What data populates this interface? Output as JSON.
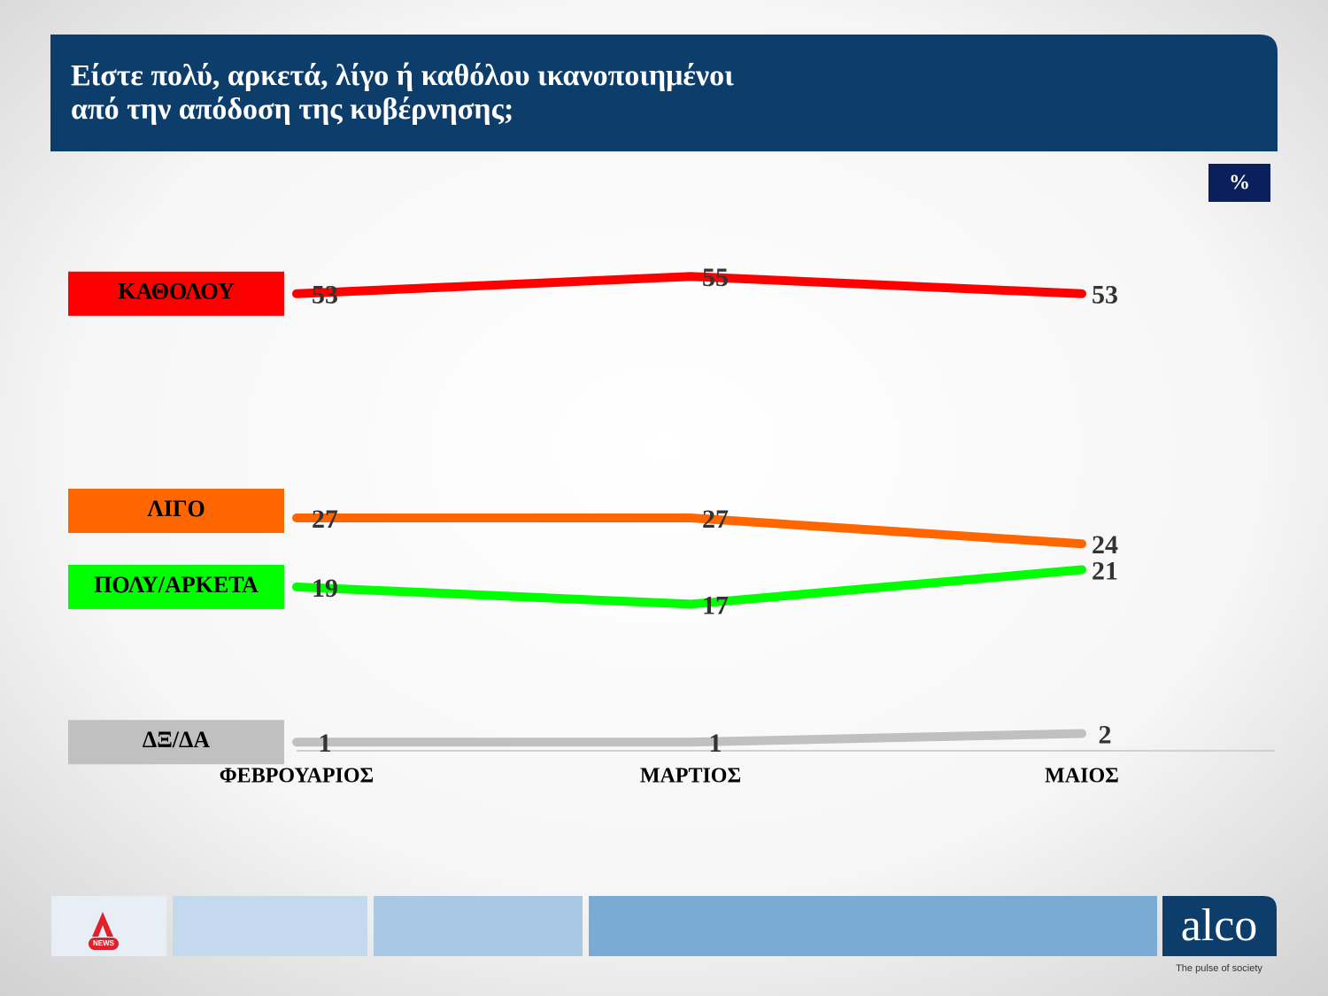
{
  "chart_data": {
    "type": "line",
    "title": [
      "Είστε πολύ, αρκετά, λίγο ή καθόλου ικανοποιημένοι",
      "από την απόδοση της κυβέρνησης;"
    ],
    "unit": "%",
    "categories": [
      "ΦΕΒΡΟΥΑΡΙΟΣ",
      "ΜΑΡΤΙΟΣ",
      "ΜΑΙΟΣ"
    ],
    "series": [
      {
        "name": "ΚΑΘΟΛΟΥ",
        "color": "#ff0000",
        "values": [
          53,
          55,
          53
        ]
      },
      {
        "name": "ΛΙΓΟ",
        "color": "#ff6600",
        "values": [
          27,
          27,
          24
        ]
      },
      {
        "name": "ΠΟΛΥ/ΑΡΚΕΤΑ",
        "color": "#00ff00",
        "values": [
          19,
          17,
          21
        ]
      },
      {
        "name": "ΔΞ/ΔΑ",
        "color": "#c0c0c0",
        "values": [
          1,
          1,
          2
        ]
      }
    ]
  },
  "footer": {
    "news_logo": "NEWS",
    "brand": "alco",
    "tagline": "The pulse of society"
  }
}
